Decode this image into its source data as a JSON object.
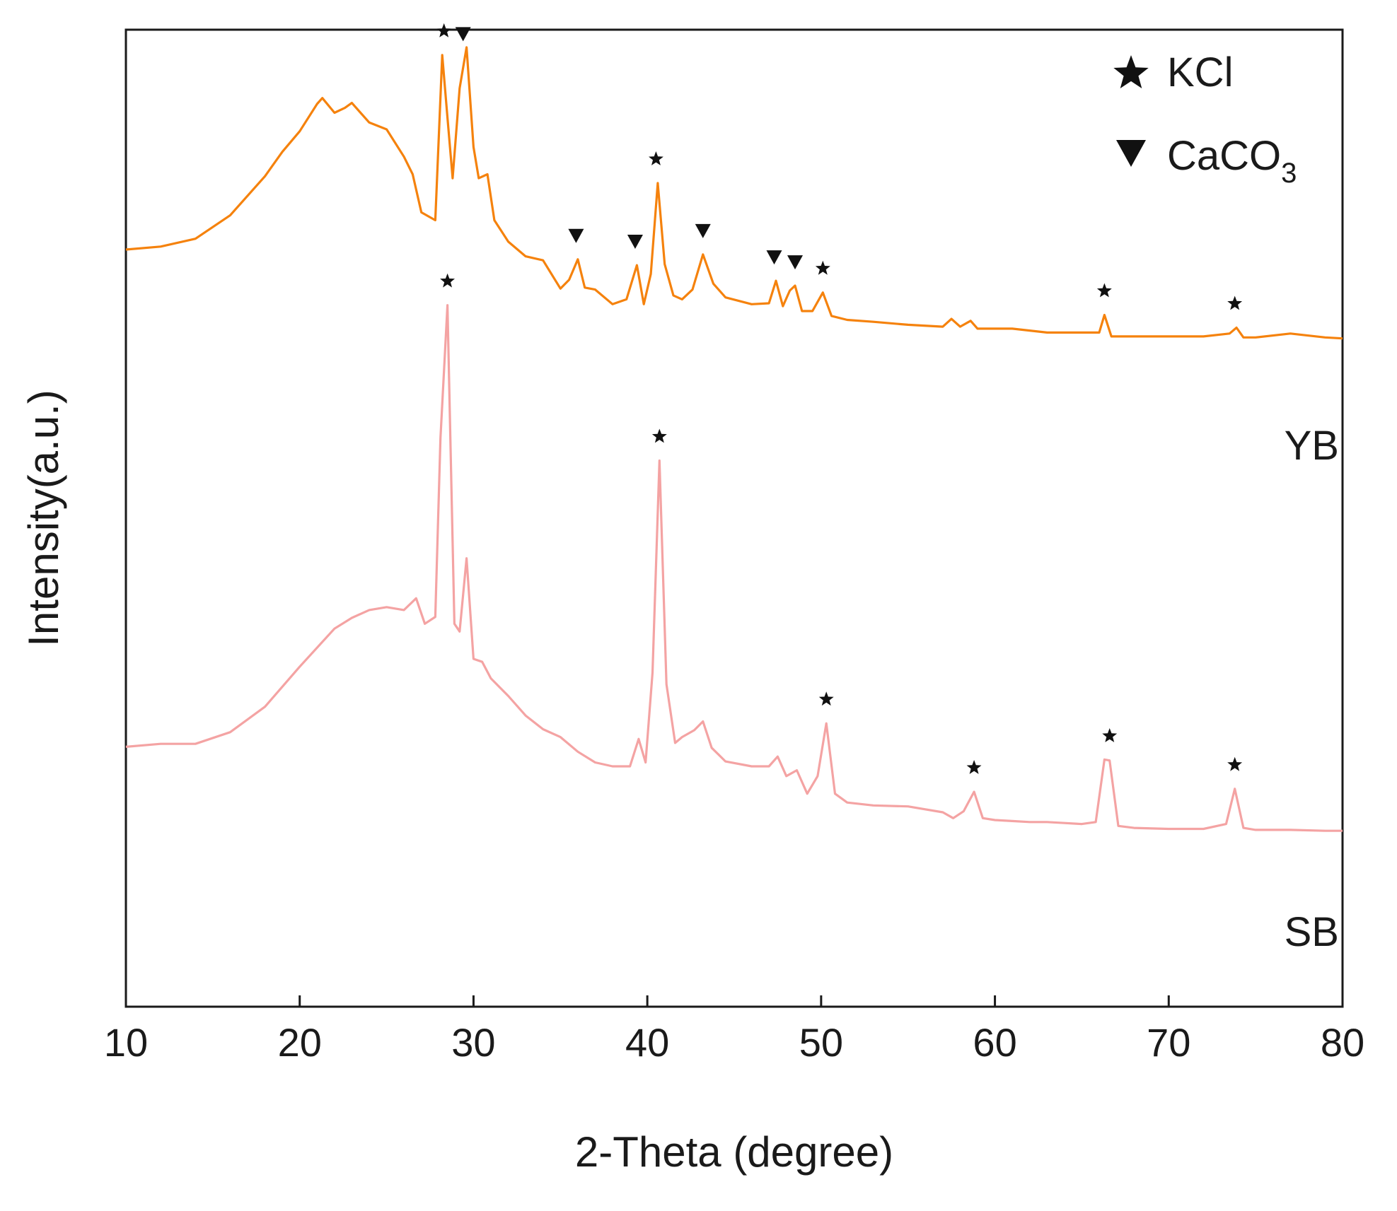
{
  "chart_data": {
    "type": "line",
    "title": "",
    "xlabel": "2-Theta (degree)",
    "ylabel": "Intensity(a.u.)",
    "xlim": [
      10,
      80
    ],
    "xticks": [
      10,
      20,
      30,
      40,
      50,
      60,
      70,
      80
    ],
    "ylim": [
      0,
      100
    ],
    "yticks_shown": false,
    "grid": false,
    "legend": {
      "placement": "top-right",
      "entries": [
        {
          "marker": "star",
          "label": "KCl",
          "main": "KCl",
          "sub": ""
        },
        {
          "marker": "triangle-down",
          "label": "CaCO3",
          "main": "CaCO",
          "sub": "3"
        }
      ]
    },
    "series": [
      {
        "name": "YB",
        "color": "#F5820D",
        "x": [
          10,
          12,
          14,
          16,
          18,
          19,
          20,
          21,
          21.3,
          22,
          22.6,
          23,
          24,
          25,
          26,
          26.5,
          27,
          27.8,
          28.2,
          28.5,
          28.8,
          29.2,
          29.6,
          30,
          30.3,
          30.8,
          31.2,
          32,
          33,
          34,
          35,
          35.5,
          36,
          36.4,
          37,
          38,
          38.8,
          39.4,
          39.8,
          40.2,
          40.6,
          41,
          41.5,
          42,
          42.6,
          43.2,
          43.8,
          44.5,
          46,
          47,
          47.4,
          47.8,
          48.2,
          48.5,
          48.9,
          49.5,
          50.1,
          50.6,
          51.5,
          53,
          55,
          57,
          57.5,
          58,
          58.6,
          59,
          61,
          63,
          65,
          66,
          66.3,
          66.7,
          67.5,
          70,
          72,
          73.5,
          73.9,
          74.3,
          75,
          77,
          79,
          80
        ],
        "values": [
          77.5,
          77.8,
          78.6,
          81.0,
          85.0,
          87.5,
          89.6,
          92.4,
          93.0,
          91.5,
          92.0,
          92.5,
          90.5,
          89.8,
          87.0,
          85.2,
          81.3,
          80.5,
          97.4,
          91.0,
          84.8,
          94.0,
          98.2,
          88.0,
          84.8,
          85.2,
          80.5,
          78.3,
          76.8,
          76.4,
          73.5,
          74.4,
          76.5,
          73.6,
          73.4,
          71.9,
          72.4,
          75.9,
          71.9,
          75.0,
          84.3,
          76.0,
          72.8,
          72.4,
          73.4,
          77.0,
          74.0,
          72.6,
          71.9,
          72.0,
          74.3,
          71.7,
          73.3,
          73.8,
          71.2,
          71.2,
          73.1,
          70.7,
          70.3,
          70.1,
          69.8,
          69.6,
          70.4,
          69.6,
          70.2,
          69.4,
          69.4,
          69.0,
          69.0,
          69.0,
          70.8,
          68.6,
          68.6,
          68.6,
          68.6,
          68.9,
          69.5,
          68.5,
          68.5,
          68.9,
          68.5,
          68.4
        ]
      },
      {
        "name": "SB",
        "color": "#F4A3A3",
        "x": [
          10,
          12,
          14,
          16,
          18,
          20,
          22,
          23,
          24,
          25,
          26,
          26.7,
          27.2,
          27.8,
          28.1,
          28.5,
          28.9,
          29.2,
          29.6,
          30,
          30.5,
          31,
          32,
          33,
          34,
          35,
          36,
          37,
          38,
          39,
          39.5,
          39.9,
          40.3,
          40.7,
          41.1,
          41.6,
          42,
          42.7,
          43.2,
          43.7,
          44.5,
          46,
          47,
          47.5,
          48,
          48.6,
          49.2,
          49.8,
          50.3,
          50.8,
          51.5,
          53,
          55,
          57,
          57.6,
          58.2,
          58.8,
          59.3,
          60,
          61,
          62,
          63,
          64,
          65,
          65.8,
          66.3,
          66.6,
          67.1,
          68,
          70,
          72,
          73.3,
          73.8,
          74.3,
          75,
          77,
          79,
          80
        ],
        "values": [
          26.6,
          26.9,
          26.9,
          28.1,
          30.7,
          34.8,
          38.7,
          39.8,
          40.6,
          40.9,
          40.6,
          41.8,
          39.2,
          39.9,
          58.2,
          71.8,
          39.2,
          38.4,
          45.9,
          35.6,
          35.3,
          33.6,
          31.8,
          29.8,
          28.4,
          27.6,
          26.1,
          25.0,
          24.6,
          24.6,
          27.4,
          25.0,
          34.2,
          55.9,
          33.0,
          27.0,
          27.6,
          28.3,
          29.2,
          26.5,
          25.1,
          24.6,
          24.6,
          25.6,
          23.6,
          24.2,
          21.8,
          23.6,
          29.0,
          21.8,
          20.9,
          20.6,
          20.5,
          19.9,
          19.3,
          20.0,
          22.0,
          19.3,
          19.1,
          19.0,
          18.9,
          18.9,
          18.8,
          18.7,
          18.9,
          25.3,
          25.2,
          18.5,
          18.3,
          18.2,
          18.2,
          18.7,
          22.3,
          18.3,
          18.1,
          18.1,
          18.0,
          18.0
        ]
      }
    ],
    "annotations": [
      {
        "series": "YB",
        "marker": "star",
        "x": 28.3
      },
      {
        "series": "YB",
        "marker": "triangle-down",
        "x": 29.4
      },
      {
        "series": "YB",
        "marker": "star",
        "x": 40.5
      },
      {
        "series": "YB",
        "marker": "triangle-down",
        "x": 35.9
      },
      {
        "series": "YB",
        "marker": "triangle-down",
        "x": 39.3
      },
      {
        "series": "YB",
        "marker": "triangle-down",
        "x": 43.2
      },
      {
        "series": "YB",
        "marker": "triangle-down",
        "x": 47.3
      },
      {
        "series": "YB",
        "marker": "triangle-down",
        "x": 48.5
      },
      {
        "series": "YB",
        "marker": "star",
        "x": 50.1
      },
      {
        "series": "YB",
        "marker": "star",
        "x": 66.3
      },
      {
        "series": "YB",
        "marker": "star",
        "x": 73.8
      },
      {
        "series": "SB",
        "marker": "star",
        "x": 28.5
      },
      {
        "series": "SB",
        "marker": "star",
        "x": 40.7
      },
      {
        "series": "SB",
        "marker": "star",
        "x": 50.3
      },
      {
        "series": "SB",
        "marker": "star",
        "x": 58.8
      },
      {
        "series": "SB",
        "marker": "star",
        "x": 66.6
      },
      {
        "series": "SB",
        "marker": "star",
        "x": 73.8
      }
    ]
  }
}
